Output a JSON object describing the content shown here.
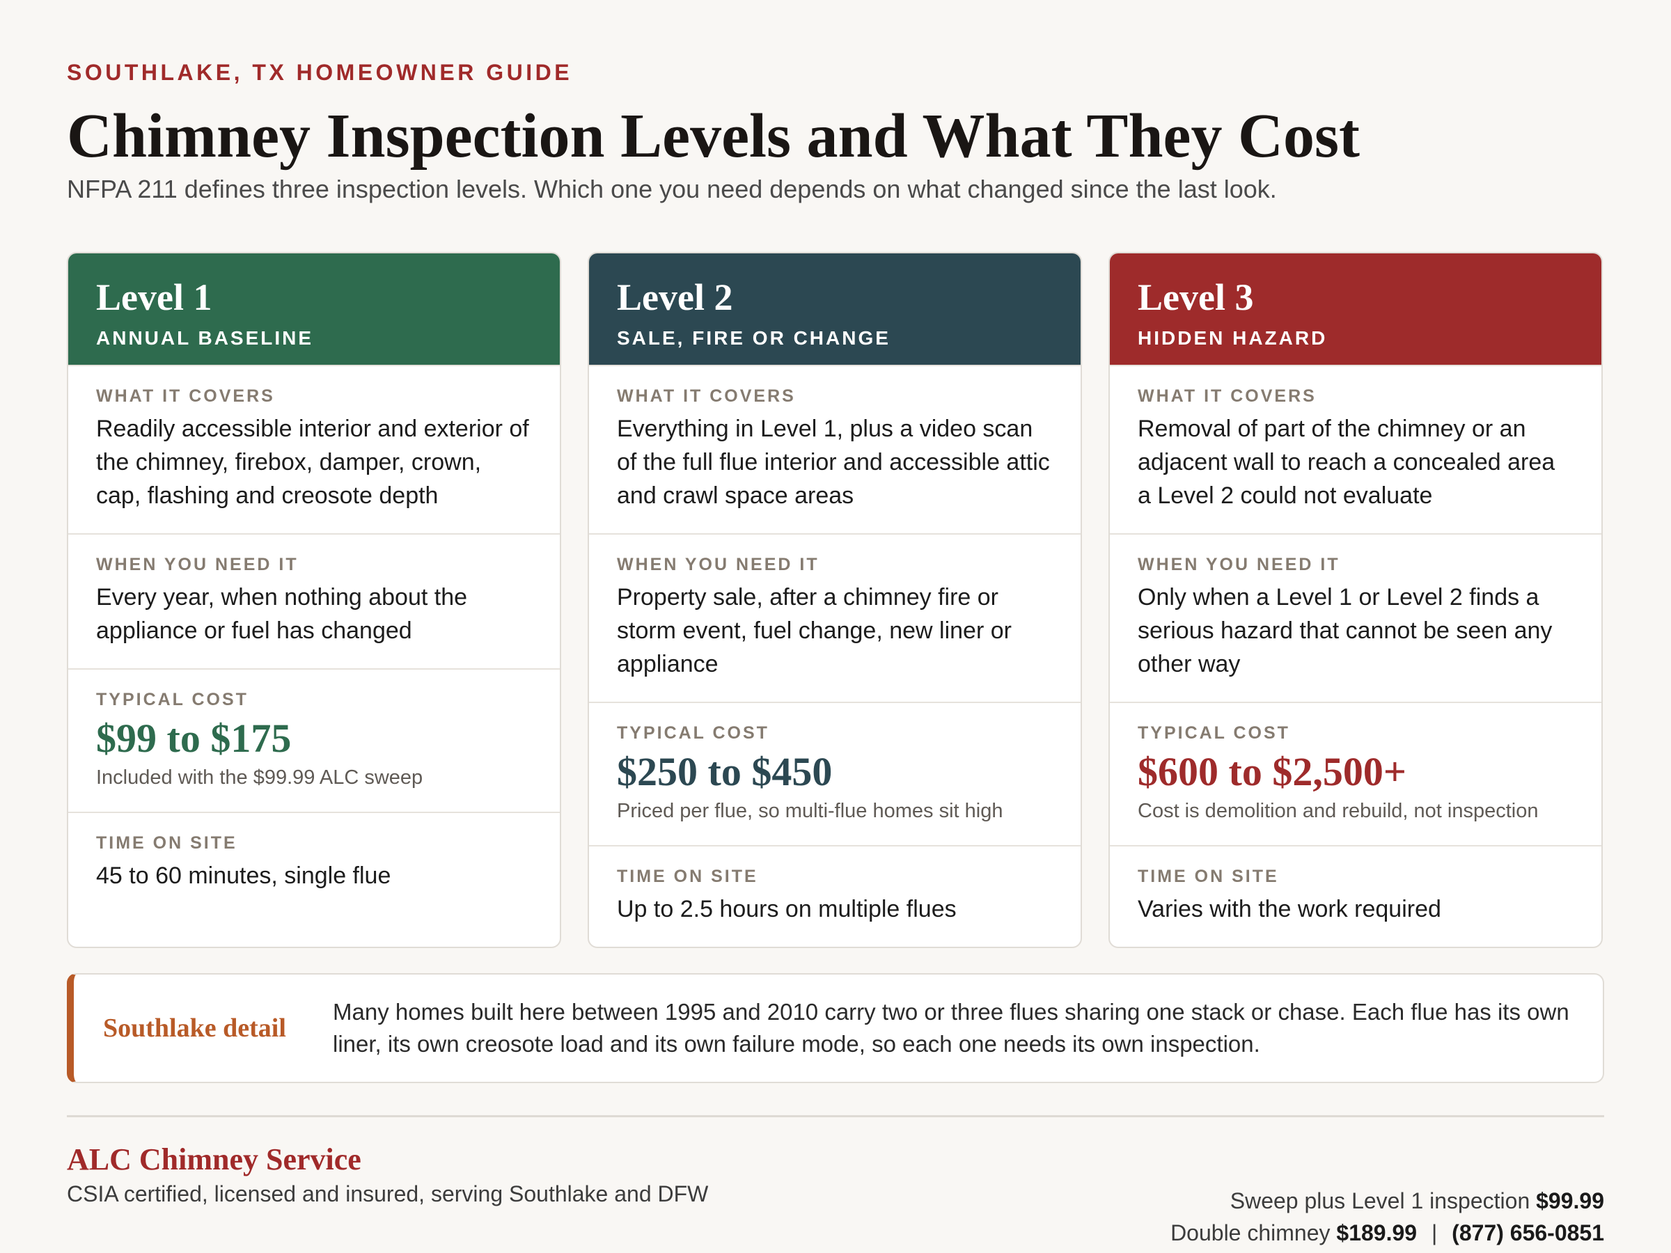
{
  "header": {
    "eyebrow": "SOUTHLAKE, TX HOMEOWNER GUIDE",
    "title": "Chimney Inspection Levels and What They Cost",
    "subtitle": "NFPA 211 defines three inspection levels. Which one you need depends on what changed since the last look."
  },
  "labels": {
    "covers": "WHAT IT COVERS",
    "when": "WHEN YOU NEED IT",
    "cost": "TYPICAL COST",
    "time": "TIME ON SITE"
  },
  "colors": {
    "level1": "#2e6b4e",
    "level2": "#2c4852",
    "level3": "#9e2b2b",
    "accent": "#b85a27"
  },
  "levels": [
    {
      "title": "Level 1",
      "tag": "ANNUAL BASELINE",
      "covers": "Readily accessible interior and exterior of the chimney, firebox, damper, crown, cap, flashing and creosote depth",
      "when": "Every year, when nothing about the appliance or fuel has changed",
      "cost": "$99 to $175",
      "cost_note": "Included with the $99.99 ALC sweep",
      "time": "45 to 60 minutes, single flue"
    },
    {
      "title": "Level 2",
      "tag": "SALE, FIRE OR CHANGE",
      "covers": "Everything in Level 1, plus a video scan of the full flue interior and accessible attic and crawl space areas",
      "when": "Property sale, after a chimney fire or storm event, fuel change, new liner or appliance",
      "cost": "$250 to $450",
      "cost_note": "Priced per flue, so multi-flue homes sit high",
      "time": "Up to 2.5 hours on multiple flues"
    },
    {
      "title": "Level 3",
      "tag": "HIDDEN HAZARD",
      "covers": "Removal of part of the chimney or an adjacent wall to reach a concealed area a Level 2 could not evaluate",
      "when": "Only when a Level 1 or Level 2 finds a serious hazard that cannot be seen any other way",
      "cost": "$600 to $2,500+",
      "cost_note": "Cost is demolition and rebuild, not inspection",
      "time": "Varies with the work required"
    }
  ],
  "detail": {
    "label": "Southlake detail",
    "text": "Many homes built here between 1995 and 2010 carry two or three flues sharing one stack or chase. Each flue has its own liner, its own creosote load and its own failure mode, so each one needs its own inspection."
  },
  "footer": {
    "brand": "ALC Chimney Service",
    "brand_sub": "CSIA certified, licensed and insured, serving Southlake and DFW",
    "line1_text": "Sweep plus Level 1 inspection",
    "line1_price": "$99.99",
    "line2_text": "Double chimney",
    "line2_price": "$189.99",
    "separator": "|",
    "phone": "(877) 656-0851"
  }
}
